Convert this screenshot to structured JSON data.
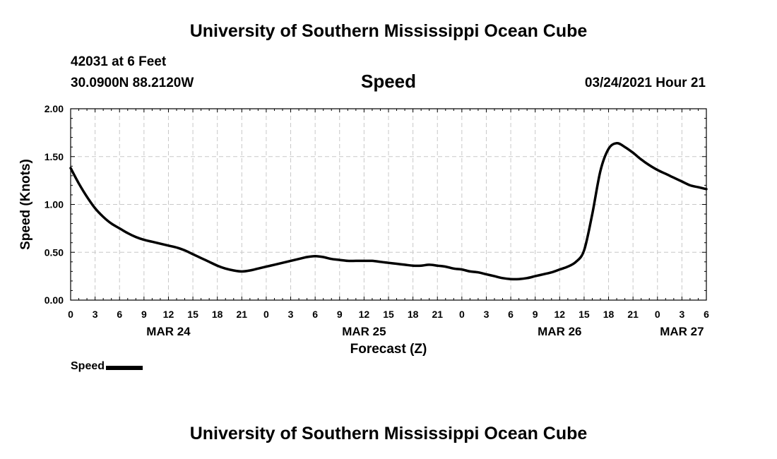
{
  "header": {
    "title": "University of Southern Mississippi Ocean Cube",
    "station": "42031 at 6 Feet",
    "coords": "30.0900N 88.2120W",
    "datetime": "03/24/2021 Hour 21"
  },
  "footer": {
    "title": "University of Southern Mississippi Ocean Cube"
  },
  "chart_data": {
    "type": "line",
    "title": "Speed",
    "xlabel": "Forecast (Z)",
    "ylabel": "Speed (Knots)",
    "xlim": [
      0,
      78
    ],
    "ylim": [
      0,
      2
    ],
    "grid": true,
    "y_ticks": [
      0,
      0.5,
      1,
      1.5,
      2
    ],
    "y_tick_labels": [
      "0.00",
      "0.50",
      "1.00",
      "1.50",
      "2.00"
    ],
    "x_ticks": [
      0,
      3,
      6,
      9,
      12,
      15,
      18,
      21,
      24,
      27,
      30,
      33,
      36,
      39,
      42,
      45,
      48,
      51,
      54,
      57,
      60,
      63,
      66,
      69,
      72,
      75,
      78
    ],
    "x_tick_labels": [
      "0",
      "3",
      "6",
      "9",
      "12",
      "15",
      "18",
      "21",
      "0",
      "3",
      "6",
      "9",
      "12",
      "15",
      "18",
      "21",
      "0",
      "3",
      "6",
      "9",
      "12",
      "15",
      "18",
      "21",
      "0",
      "3",
      "6"
    ],
    "date_labels": [
      {
        "hour": 12,
        "label": "MAR 24"
      },
      {
        "hour": 36,
        "label": "MAR 25"
      },
      {
        "hour": 60,
        "label": "MAR 26"
      },
      {
        "hour": 75,
        "label": "MAR 27"
      }
    ],
    "legend": "bottom-left",
    "series": [
      {
        "name": "Speed",
        "color": "#000000",
        "x": [
          0,
          1,
          2,
          3,
          4,
          5,
          6,
          7,
          8,
          9,
          10,
          11,
          12,
          13,
          14,
          15,
          16,
          17,
          18,
          19,
          20,
          21,
          22,
          23,
          24,
          25,
          26,
          27,
          28,
          29,
          30,
          31,
          32,
          33,
          34,
          35,
          36,
          37,
          38,
          39,
          40,
          41,
          42,
          43,
          44,
          45,
          46,
          47,
          48,
          49,
          50,
          51,
          52,
          53,
          54,
          55,
          56,
          57,
          58,
          59,
          60,
          61,
          62,
          63,
          64,
          65,
          66,
          67,
          68,
          69,
          70,
          71,
          72,
          73,
          74,
          75,
          76,
          77,
          78
        ],
        "values": [
          1.38,
          1.22,
          1.08,
          0.96,
          0.87,
          0.8,
          0.75,
          0.7,
          0.66,
          0.63,
          0.61,
          0.59,
          0.57,
          0.55,
          0.52,
          0.48,
          0.44,
          0.4,
          0.36,
          0.33,
          0.31,
          0.3,
          0.31,
          0.33,
          0.35,
          0.37,
          0.39,
          0.41,
          0.43,
          0.45,
          0.46,
          0.45,
          0.43,
          0.42,
          0.41,
          0.41,
          0.41,
          0.41,
          0.4,
          0.39,
          0.38,
          0.37,
          0.36,
          0.36,
          0.37,
          0.36,
          0.35,
          0.33,
          0.32,
          0.3,
          0.29,
          0.27,
          0.25,
          0.23,
          0.22,
          0.22,
          0.23,
          0.25,
          0.27,
          0.29,
          0.32,
          0.35,
          0.4,
          0.52,
          0.9,
          1.35,
          1.58,
          1.64,
          1.6,
          1.54,
          1.47,
          1.41,
          1.36,
          1.32,
          1.28,
          1.24,
          1.2,
          1.18,
          1.16
        ]
      }
    ]
  }
}
